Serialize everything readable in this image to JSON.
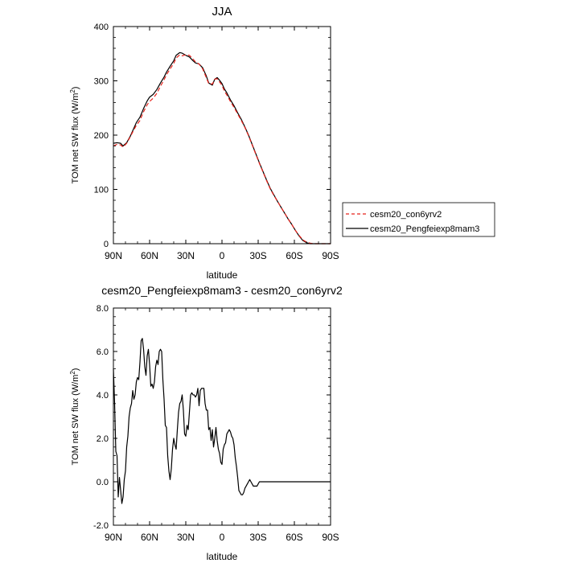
{
  "chart_data": [
    {
      "type": "line",
      "title": "JJA",
      "xlabel": "latitude",
      "ylabel": "TOM net SW flux (W/m",
      "ylabel_sup": "2",
      "ylabel_close": ")",
      "xlim": [
        90,
        -90
      ],
      "ylim": [
        0,
        400
      ],
      "xticks": [
        {
          "value": 90,
          "label": "90N"
        },
        {
          "value": 60,
          "label": "60N"
        },
        {
          "value": 30,
          "label": "30N"
        },
        {
          "value": 0,
          "label": "0"
        },
        {
          "value": -30,
          "label": "30S"
        },
        {
          "value": -60,
          "label": "60S"
        },
        {
          "value": -90,
          "label": "90S"
        }
      ],
      "yticks": [
        {
          "value": 0,
          "label": "0"
        },
        {
          "value": 100,
          "label": "100"
        },
        {
          "value": 200,
          "label": "200"
        },
        {
          "value": 300,
          "label": "300"
        },
        {
          "value": 400,
          "label": "400"
        }
      ],
      "legend_position": "right",
      "series": [
        {
          "name": "cesm20_con6yrv2",
          "color": "#e8221b",
          "dash": "dashed",
          "x": [
            90,
            87,
            84,
            82,
            79,
            76,
            73,
            71,
            68,
            65,
            62,
            60,
            57,
            54,
            51,
            48,
            46,
            43,
            40,
            38,
            35,
            33,
            30,
            27,
            24,
            22,
            19,
            16,
            13,
            11,
            8,
            6,
            4,
            2,
            0,
            -2,
            -4,
            -7,
            -10,
            -13,
            -16,
            -19,
            -22,
            -25,
            -28,
            -31,
            -34,
            -37,
            -40,
            -43,
            -46,
            -49,
            -52,
            -55,
            -58,
            -61,
            -64,
            -67,
            -70,
            -73,
            -76,
            -79,
            -82,
            -85,
            -88,
            -90
          ],
          "values": [
            180,
            183,
            182,
            178,
            185,
            197,
            210,
            218,
            227,
            243,
            256,
            262,
            268,
            277,
            290,
            302,
            311,
            322,
            332,
            342,
            348,
            346,
            348,
            347,
            340,
            335,
            331,
            322,
            306,
            295,
            294,
            303,
            304,
            298,
            292,
            281,
            274,
            262,
            251,
            239,
            227,
            214,
            199,
            182,
            165,
            148,
            132,
            116,
            101,
            89,
            78,
            67,
            56,
            45,
            35,
            24,
            15,
            7,
            3,
            1,
            0,
            0,
            0,
            0,
            0,
            0
          ]
        },
        {
          "name": "cesm20_Pengfeiexp8mam3",
          "color": "#000000",
          "dash": "solid",
          "x": [
            90,
            87,
            84,
            82,
            79,
            76,
            73,
            71,
            68,
            65,
            62,
            60,
            57,
            54,
            51,
            48,
            46,
            43,
            40,
            38,
            35,
            33,
            30,
            27,
            24,
            22,
            19,
            16,
            13,
            11,
            8,
            6,
            4,
            2,
            0,
            -2,
            -4,
            -7,
            -10,
            -13,
            -16,
            -19,
            -22,
            -25,
            -28,
            -31,
            -34,
            -37,
            -40,
            -43,
            -46,
            -49,
            -52,
            -55,
            -58,
            -61,
            -64,
            -67,
            -70,
            -73,
            -76,
            -79,
            -82,
            -85,
            -88,
            -90
          ],
          "values": [
            185,
            186,
            185,
            180,
            186,
            198,
            213,
            223,
            233,
            249,
            263,
            270,
            275,
            284,
            296,
            307,
            316,
            327,
            337,
            347,
            352,
            351,
            347,
            344,
            337,
            333,
            331,
            324,
            309,
            296,
            292,
            303,
            306,
            301,
            295,
            285,
            278,
            265,
            254,
            241,
            229,
            215,
            200,
            183,
            166,
            149,
            133,
            117,
            102,
            90,
            78,
            67,
            56,
            45,
            35,
            24,
            14,
            6,
            2,
            0,
            0,
            0,
            0,
            0,
            0,
            0
          ]
        }
      ]
    },
    {
      "type": "line",
      "title": "cesm20_Pengfeiexp8mam3 - cesm20_con6yrv2",
      "xlabel": "latitude",
      "ylabel": "TOM net SW flux (W/m",
      "ylabel_sup": "2",
      "ylabel_close": ")",
      "xlim": [
        90,
        -90
      ],
      "ylim": [
        -2,
        8
      ],
      "xticks": [
        {
          "value": 90,
          "label": "90N"
        },
        {
          "value": 60,
          "label": "60N"
        },
        {
          "value": 30,
          "label": "30N"
        },
        {
          "value": 0,
          "label": "0"
        },
        {
          "value": -30,
          "label": "30S"
        },
        {
          "value": -60,
          "label": "60S"
        },
        {
          "value": -90,
          "label": "90S"
        }
      ],
      "yticks": [
        {
          "value": -2,
          "label": "-2.0"
        },
        {
          "value": 0,
          "label": "0.0"
        },
        {
          "value": 2,
          "label": "2.0"
        },
        {
          "value": 4,
          "label": "4.0"
        },
        {
          "value": 6,
          "label": "6.0"
        },
        {
          "value": 8,
          "label": "8.0"
        }
      ],
      "series": [
        {
          "color": "#000000",
          "dash": "solid",
          "x": [
            90,
            89,
            88,
            87,
            86,
            85,
            84,
            83,
            82,
            81,
            80,
            79,
            78,
            77,
            76,
            75,
            74,
            73,
            72,
            71,
            70,
            69,
            68,
            67,
            66,
            65,
            64,
            63,
            62,
            61,
            60,
            59,
            58,
            57,
            56,
            55,
            54,
            53,
            52,
            51,
            50,
            49,
            48,
            47,
            46,
            45,
            44,
            43,
            42,
            41,
            40,
            39,
            38,
            37,
            36,
            35,
            34,
            33,
            32,
            31,
            30,
            29,
            28,
            27,
            26,
            25,
            24,
            23,
            22,
            21,
            20,
            19,
            18,
            17,
            16,
            15,
            14,
            13,
            12,
            11,
            10,
            9,
            8,
            7,
            6,
            5,
            4,
            3,
            2,
            1,
            0,
            -1,
            -2,
            -3,
            -4,
            -5,
            -6,
            -7,
            -8,
            -9,
            -10,
            -11,
            -12,
            -13,
            -14,
            -15,
            -16,
            -17,
            -18,
            -19,
            -20,
            -21,
            -22,
            -23,
            -24,
            -25,
            -26,
            -27,
            -28,
            -29,
            -30,
            -31,
            -32,
            -33,
            -34,
            -35,
            -36,
            -37,
            -38,
            -39,
            -40,
            -42,
            -44,
            -46,
            -48,
            -50,
            -52,
            -54,
            -56,
            -58,
            -60,
            -62,
            -64,
            -66,
            -68,
            -70,
            -72,
            -74,
            -76,
            -78,
            -80,
            -84,
            -90
          ],
          "values": [
            5.2,
            3.6,
            1.4,
            1.2,
            -0.7,
            0.2,
            -0.4,
            -1.0,
            -0.7,
            0.1,
            0.5,
            1.6,
            2.1,
            3.0,
            3.4,
            3.6,
            4.2,
            3.8,
            4.0,
            4.6,
            4.8,
            4.7,
            5.5,
            6.5,
            6.6,
            6.1,
            5.3,
            4.9,
            5.8,
            6.1,
            5.4,
            4.4,
            4.5,
            4.3,
            4.6,
            5.3,
            5.6,
            5.4,
            6.0,
            6.1,
            6.0,
            4.7,
            3.8,
            2.6,
            2.5,
            1.2,
            0.5,
            0.1,
            0.6,
            1.5,
            2.0,
            1.7,
            1.5,
            2.4,
            3.2,
            3.6,
            3.7,
            4.0,
            3.3,
            2.2,
            2.1,
            2.6,
            2.4,
            3.2,
            4.0,
            4.1,
            4.0,
            4.0,
            3.9,
            4.0,
            4.3,
            3.5,
            4.2,
            4.3,
            4.3,
            4.3,
            3.6,
            3.3,
            3.3,
            2.4,
            2.5,
            1.9,
            2.4,
            1.6,
            2.0,
            2.5,
            1.9,
            1.5,
            1.3,
            0.9,
            0.8,
            1.5,
            1.7,
            1.8,
            2.2,
            2.3,
            2.4,
            2.3,
            2.1,
            2.0,
            1.7,
            1.1,
            0.7,
            0.2,
            -0.4,
            -0.5,
            -0.6,
            -0.6,
            -0.5,
            -0.3,
            -0.2,
            -0.1,
            0.0,
            0.1,
            0.0,
            -0.1,
            -0.2,
            -0.2,
            -0.2,
            -0.2,
            -0.1,
            0.0,
            0.0,
            0.0,
            0.0,
            0.0,
            0.0,
            0.0,
            0.0,
            0.0,
            0.0,
            0.0,
            0.0,
            0.0,
            0.0,
            0.0,
            0.0,
            0.0,
            0.0,
            0.0,
            0.0,
            0.0,
            0.0,
            0.0,
            0.0,
            0.0,
            0.0,
            0.0,
            0.0,
            0.0,
            0.0,
            0.0,
            0.0
          ]
        }
      ]
    }
  ]
}
